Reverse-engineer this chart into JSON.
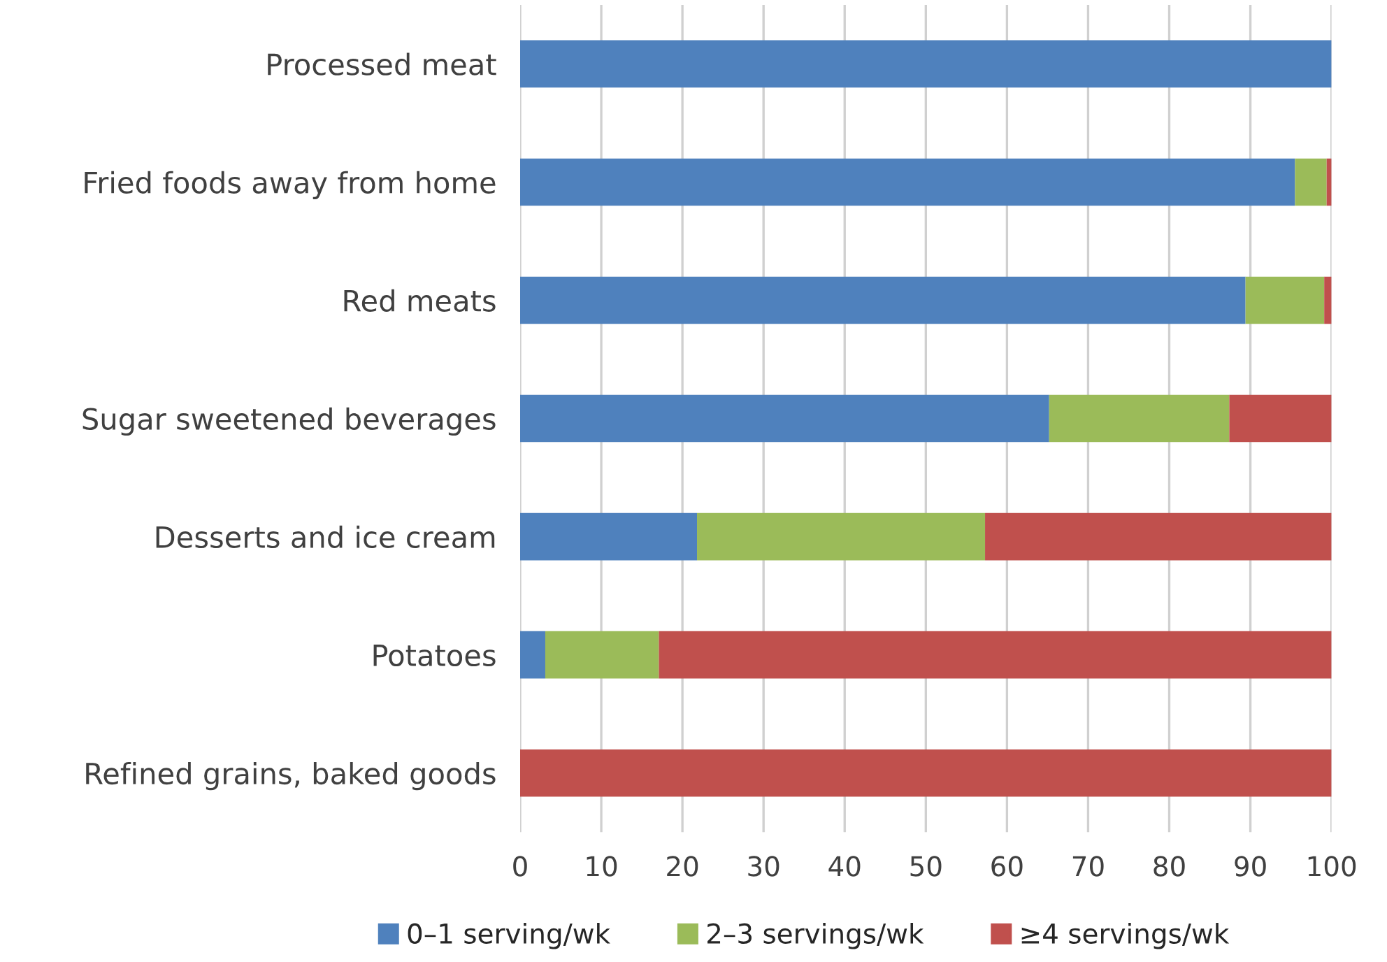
{
  "chart_data": {
    "type": "bar",
    "orientation": "horizontal",
    "stacked": true,
    "categories": [
      "Processed meat",
      "Fried foods away from home",
      "Red meats",
      "Sugar sweetened beverages",
      "Desserts and ice cream",
      "Potatoes",
      "Refined grains, baked goods"
    ],
    "series": [
      {
        "name": "0–1 serving/wk",
        "color": "#4f81bd",
        "values": [
          100,
          95.5,
          89.4,
          65.2,
          21.8,
          3.1,
          0
        ]
      },
      {
        "name": "2–3 servings/wk",
        "color": "#9bbb59",
        "values": [
          0,
          3.9,
          9.7,
          22.2,
          35.5,
          14.0,
          0
        ]
      },
      {
        "name": "≥4 servings/wk",
        "color": "#c0504d",
        "values": [
          0,
          0.6,
          0.9,
          12.6,
          42.7,
          82.9,
          100
        ]
      }
    ],
    "xlim": [
      0,
      100
    ],
    "xticks": [
      0,
      10,
      20,
      30,
      40,
      50,
      60,
      70,
      80,
      90,
      100
    ],
    "grid": "x",
    "legend": "bottom"
  }
}
